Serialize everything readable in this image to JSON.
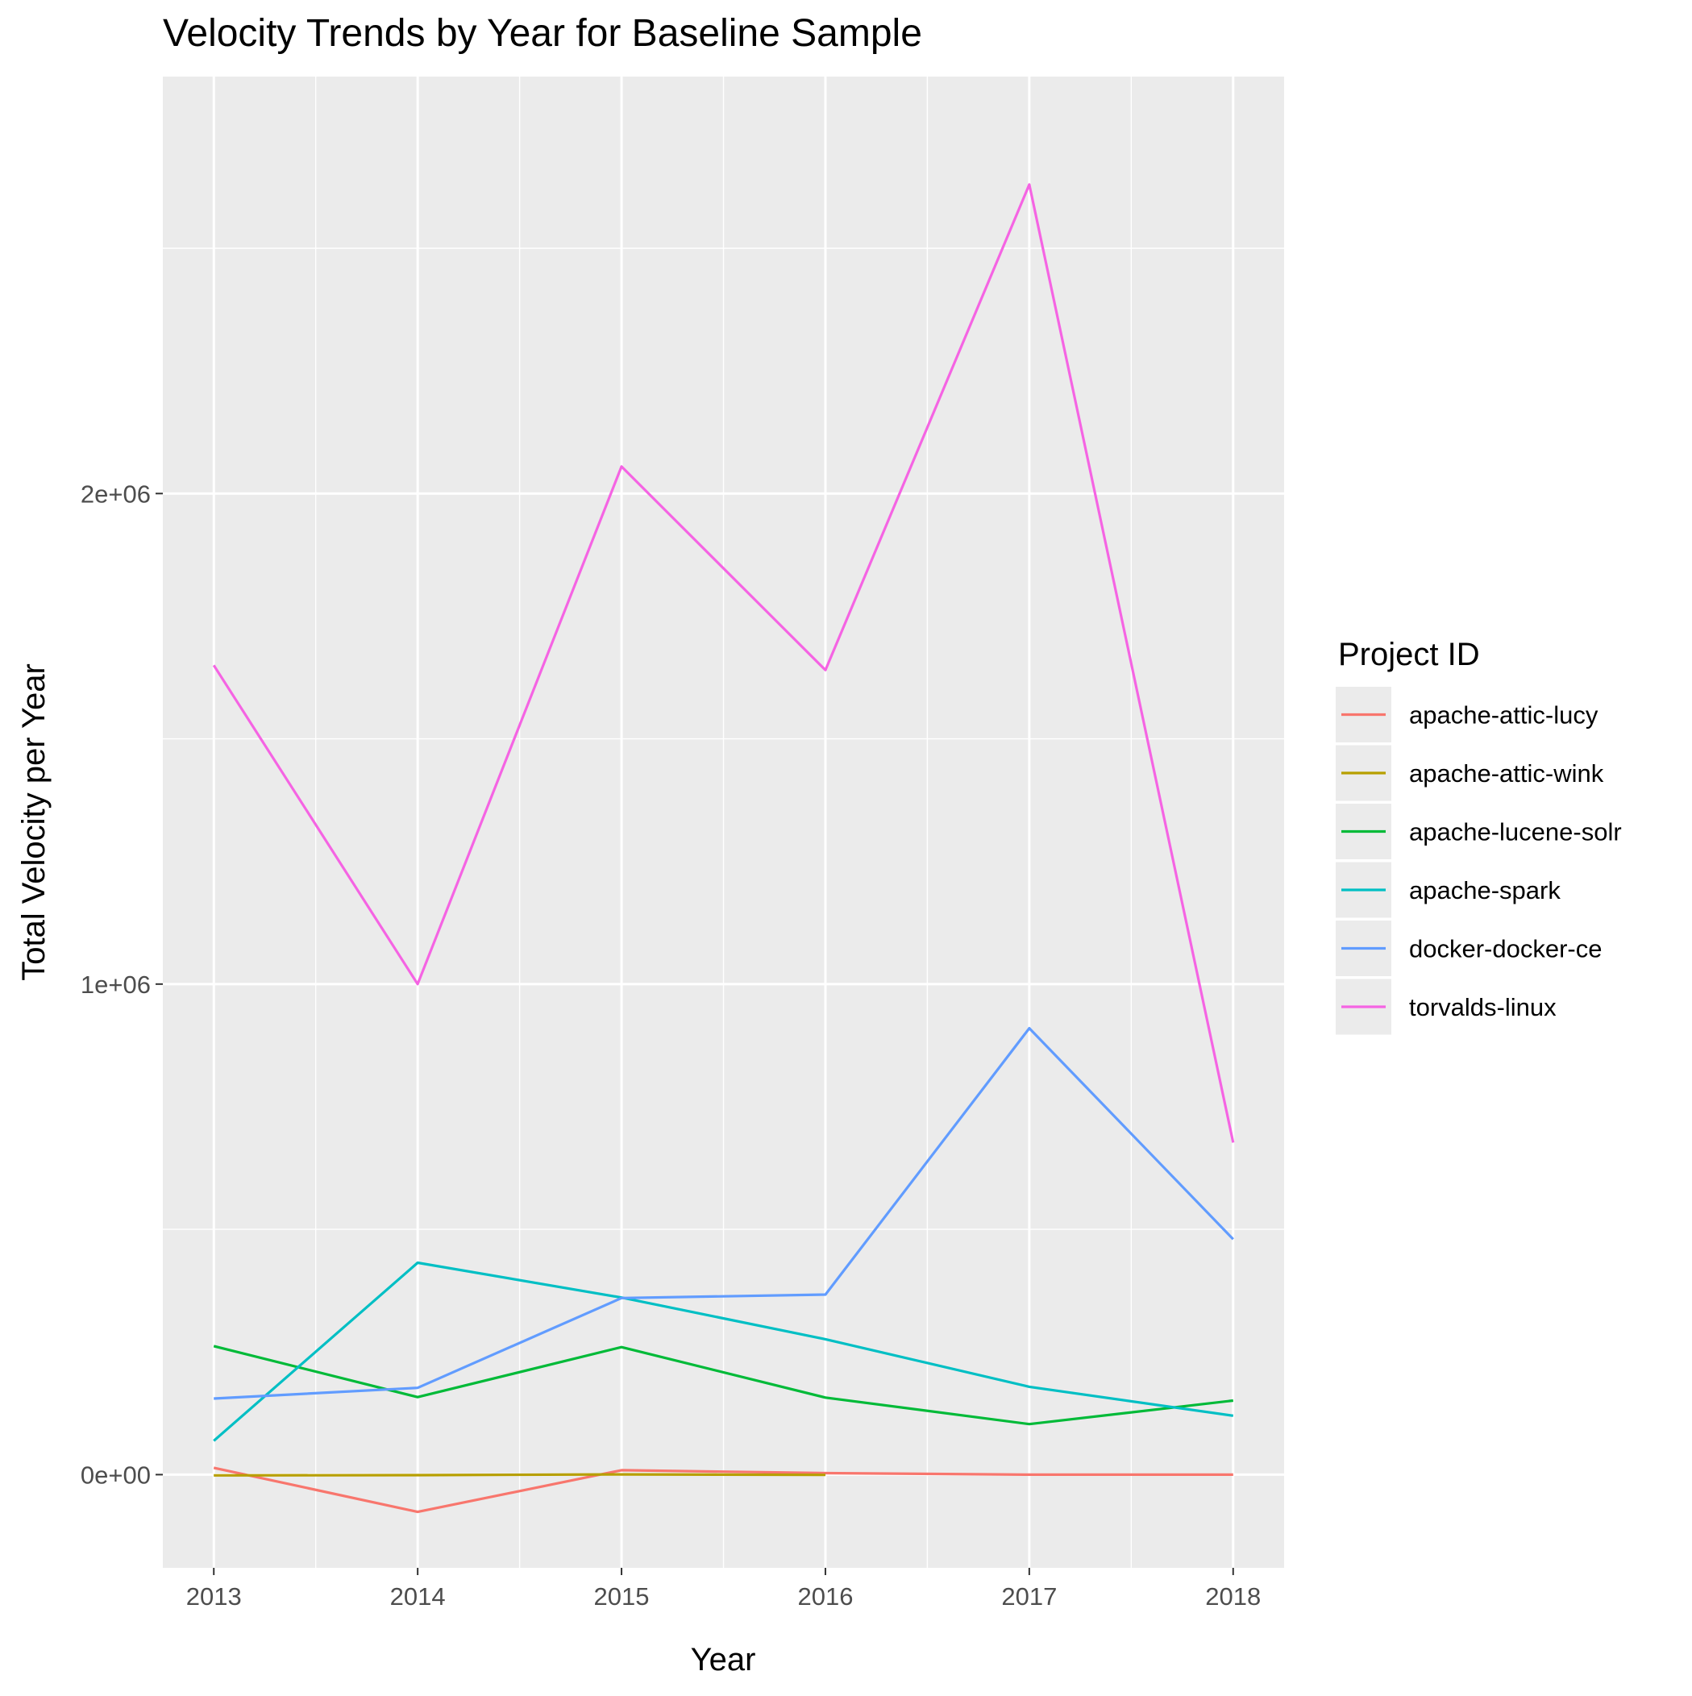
{
  "chart_data": {
    "type": "line",
    "title": "Velocity Trends by Year for Baseline Sample",
    "xlabel": "Year",
    "ylabel": "Total Velocity per Year",
    "x": [
      2013,
      2014,
      2015,
      2016,
      2017,
      2018
    ],
    "xlim": [
      2012.75,
      2018.25
    ],
    "ylim": [
      -190000,
      2850000
    ],
    "y_ticks": [
      {
        "value": 0,
        "label": "0e+00"
      },
      {
        "value": 1000000,
        "label": "1e+06"
      },
      {
        "value": 2000000,
        "label": "2e+06"
      }
    ],
    "y_minor_ticks": [
      500000,
      1500000,
      2500000
    ],
    "x_tick_labels": [
      "2013",
      "2014",
      "2015",
      "2016",
      "2017",
      "2018"
    ],
    "grid": true,
    "legend": {
      "title": "Project ID",
      "position": "right"
    },
    "series": [
      {
        "name": "apache-attic-lucy",
        "color": "#F8766D",
        "x": [
          2013,
          2014,
          2015,
          2016,
          2017,
          2018
        ],
        "values": [
          14000,
          -76000,
          9000,
          3000,
          0,
          0
        ]
      },
      {
        "name": "apache-attic-wink",
        "color": "#B79F00",
        "x": [
          2013,
          2014,
          2015,
          2016
        ],
        "values": [
          -1500,
          -1000,
          500,
          -500
        ]
      },
      {
        "name": "apache-lucene-solr",
        "color": "#00BA38",
        "x": [
          2013,
          2014,
          2015,
          2016,
          2017,
          2018
        ],
        "values": [
          262000,
          158000,
          260000,
          157000,
          103000,
          151000
        ]
      },
      {
        "name": "apache-spark",
        "color": "#00BFC4",
        "x": [
          2013,
          2014,
          2015,
          2016,
          2017,
          2018
        ],
        "values": [
          69000,
          432000,
          361000,
          276000,
          179000,
          120000
        ]
      },
      {
        "name": "docker-docker-ce",
        "color": "#619CFF",
        "x": [
          2013,
          2014,
          2015,
          2016,
          2017,
          2018
        ],
        "values": [
          155000,
          177000,
          360000,
          367000,
          910000,
          480000
        ]
      },
      {
        "name": "torvalds-linux",
        "color": "#F564E3",
        "x": [
          2013,
          2014,
          2015,
          2016,
          2017,
          2018
        ],
        "values": [
          1650000,
          1000000,
          2055000,
          1640000,
          2630000,
          677000
        ]
      }
    ]
  }
}
